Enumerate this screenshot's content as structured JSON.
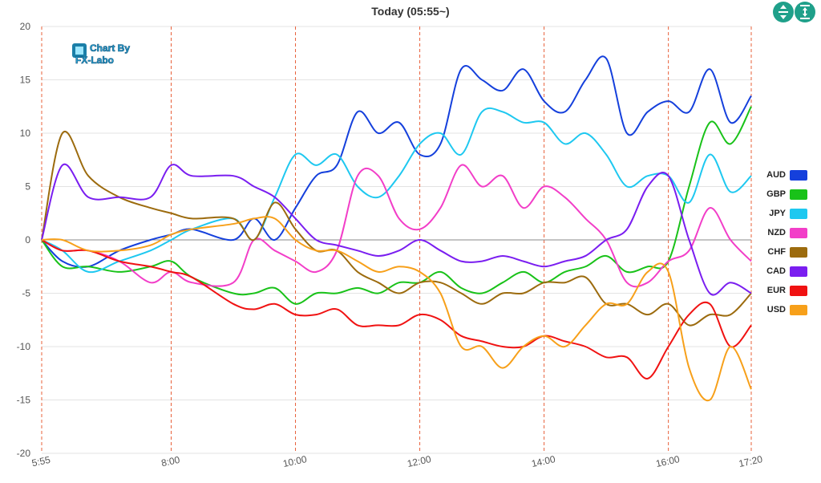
{
  "header": {
    "title": "Today  (05:55~)"
  },
  "controls": {
    "expand_icon": "expand-vertical-icon",
    "fit_icon": "fit-vertical-icon",
    "color": "#1fa08a"
  },
  "watermark": {
    "line1": "Chart By",
    "line2": "FX-Labo"
  },
  "chart_data": {
    "type": "line",
    "title": "Today  (05:55~)",
    "xlabel": "",
    "ylabel": "",
    "x_range": [
      355,
      1040
    ],
    "ylim": [
      -20,
      20
    ],
    "y_ticks": [
      20,
      15,
      10,
      5,
      0,
      -5,
      -10,
      -15,
      -20
    ],
    "x_ticks": [
      {
        "value": 355,
        "label": "5:55"
      },
      {
        "value": 480,
        "label": "8:00"
      },
      {
        "value": 600,
        "label": "10:00"
      },
      {
        "value": 720,
        "label": "12:00"
      },
      {
        "value": 840,
        "label": "14:00"
      },
      {
        "value": 960,
        "label": "16:00"
      },
      {
        "value": 1040,
        "label": "17:20"
      }
    ],
    "grid": {
      "horizontal": true,
      "vertical_dashed": true,
      "vertical_color": "#e8603a"
    },
    "legend_position": "right",
    "series": [
      {
        "name": "AUD",
        "color": "#1540dc",
        "x": [
          355,
          375,
          400,
          430,
          460,
          480,
          500,
          540,
          560,
          580,
          600,
          620,
          640,
          660,
          680,
          700,
          720,
          740,
          760,
          780,
          800,
          820,
          840,
          860,
          880,
          900,
          920,
          940,
          960,
          980,
          1000,
          1020,
          1040
        ],
        "values": [
          0,
          -2,
          -2.5,
          -1,
          0,
          0.5,
          1,
          0,
          2,
          0,
          3,
          6,
          7,
          12,
          10,
          11,
          8,
          9,
          16,
          15,
          14,
          16,
          13,
          12,
          15,
          17,
          10,
          12,
          13,
          12,
          16,
          11,
          13.5
        ]
      },
      {
        "name": "GBP",
        "color": "#19c219",
        "x": [
          355,
          375,
          400,
          430,
          460,
          480,
          500,
          540,
          560,
          580,
          600,
          620,
          640,
          660,
          680,
          700,
          720,
          740,
          760,
          780,
          800,
          820,
          840,
          860,
          880,
          900,
          920,
          940,
          960,
          980,
          1000,
          1020,
          1040
        ],
        "values": [
          0,
          -2.5,
          -2.5,
          -3,
          -2.5,
          -2,
          -3.5,
          -5,
          -5,
          -4.5,
          -6,
          -5,
          -5,
          -4.5,
          -5,
          -4,
          -4,
          -3,
          -4.5,
          -5,
          -4,
          -3,
          -4,
          -3,
          -2.5,
          -1.5,
          -3,
          -2.5,
          -2,
          5,
          11,
          9,
          12.5
        ]
      },
      {
        "name": "JPY",
        "color": "#1ec8f0",
        "x": [
          355,
          375,
          400,
          430,
          460,
          480,
          500,
          540,
          560,
          580,
          600,
          620,
          640,
          660,
          680,
          700,
          720,
          740,
          760,
          780,
          800,
          820,
          840,
          860,
          880,
          900,
          920,
          940,
          960,
          980,
          1000,
          1020,
          1040
        ],
        "values": [
          0,
          -1,
          -3,
          -2,
          -1,
          0,
          1,
          2,
          0,
          4,
          8,
          7,
          8,
          5,
          4,
          6,
          9,
          10,
          8,
          12,
          12,
          11,
          11,
          9,
          10,
          8,
          5,
          6,
          6,
          3.5,
          8,
          4.5,
          6
        ]
      },
      {
        "name": "NZD",
        "color": "#f23ec8",
        "x": [
          355,
          375,
          400,
          430,
          460,
          480,
          500,
          540,
          560,
          580,
          600,
          620,
          640,
          660,
          680,
          700,
          720,
          740,
          760,
          780,
          800,
          820,
          840,
          860,
          880,
          900,
          920,
          940,
          960,
          980,
          1000,
          1020,
          1040
        ],
        "values": [
          0,
          -1,
          -1,
          -2,
          -4,
          -3,
          -4,
          -4,
          0,
          -1,
          -2,
          -3,
          -1,
          6,
          6,
          2,
          1,
          3,
          7,
          5,
          6,
          3,
          5,
          4,
          2,
          0,
          -4,
          -4,
          -2,
          -1,
          3,
          0,
          -2
        ]
      },
      {
        "name": "CHF",
        "color": "#9c6b0e",
        "x": [
          355,
          375,
          400,
          430,
          460,
          480,
          500,
          540,
          560,
          580,
          600,
          620,
          640,
          660,
          680,
          700,
          720,
          740,
          760,
          780,
          800,
          820,
          840,
          860,
          880,
          900,
          920,
          940,
          960,
          980,
          1000,
          1020,
          1040
        ],
        "values": [
          0,
          10,
          6,
          4,
          3,
          2.5,
          2,
          2,
          0,
          3.5,
          1,
          -1,
          -1,
          -3,
          -4,
          -5,
          -4,
          -4,
          -5,
          -6,
          -5,
          -5,
          -4,
          -4,
          -3.5,
          -6,
          -6,
          -7,
          -6,
          -8,
          -7,
          -7,
          -5
        ]
      },
      {
        "name": "CAD",
        "color": "#7a1ef0",
        "x": [
          355,
          375,
          400,
          430,
          460,
          480,
          500,
          540,
          560,
          580,
          600,
          620,
          640,
          660,
          680,
          700,
          720,
          740,
          760,
          780,
          800,
          820,
          840,
          860,
          880,
          900,
          920,
          940,
          960,
          980,
          1000,
          1020,
          1040
        ],
        "values": [
          0,
          7,
          4,
          4,
          4,
          7,
          6,
          6,
          5,
          4,
          2,
          0,
          -0.5,
          -1,
          -1.5,
          -1,
          0,
          -1,
          -2,
          -2,
          -1.5,
          -2,
          -2.5,
          -2,
          -1.5,
          0,
          1,
          5,
          6,
          0,
          -5,
          -4,
          -5
        ]
      },
      {
        "name": "EUR",
        "color": "#f01212",
        "x": [
          355,
          375,
          400,
          430,
          460,
          480,
          500,
          540,
          560,
          580,
          600,
          620,
          640,
          660,
          680,
          700,
          720,
          740,
          760,
          780,
          800,
          820,
          840,
          860,
          880,
          900,
          920,
          940,
          960,
          980,
          1000,
          1020,
          1040
        ],
        "values": [
          0,
          -1,
          -1,
          -2,
          -2.5,
          -3,
          -3.5,
          -6,
          -6.5,
          -6,
          -7,
          -7,
          -6.5,
          -8,
          -8,
          -8,
          -7,
          -7.5,
          -9,
          -9.5,
          -10,
          -10,
          -9,
          -9.5,
          -10,
          -11,
          -11,
          -13,
          -10,
          -7,
          -6,
          -10,
          -8
        ]
      },
      {
        "name": "USD",
        "color": "#f7a01a",
        "x": [
          355,
          375,
          400,
          430,
          460,
          480,
          500,
          540,
          560,
          580,
          600,
          620,
          640,
          660,
          680,
          700,
          720,
          740,
          760,
          780,
          800,
          820,
          840,
          860,
          880,
          900,
          920,
          940,
          960,
          980,
          1000,
          1020,
          1040
        ],
        "values": [
          0,
          0,
          -1,
          -1,
          -0.5,
          0.5,
          1,
          1.5,
          2,
          2,
          0,
          -1,
          -1,
          -2,
          -3,
          -2.5,
          -3,
          -5,
          -10,
          -10,
          -12,
          -10,
          -9,
          -10,
          -8,
          -6,
          -6,
          -3,
          -3,
          -12,
          -15,
          -10,
          -14
        ]
      }
    ]
  }
}
